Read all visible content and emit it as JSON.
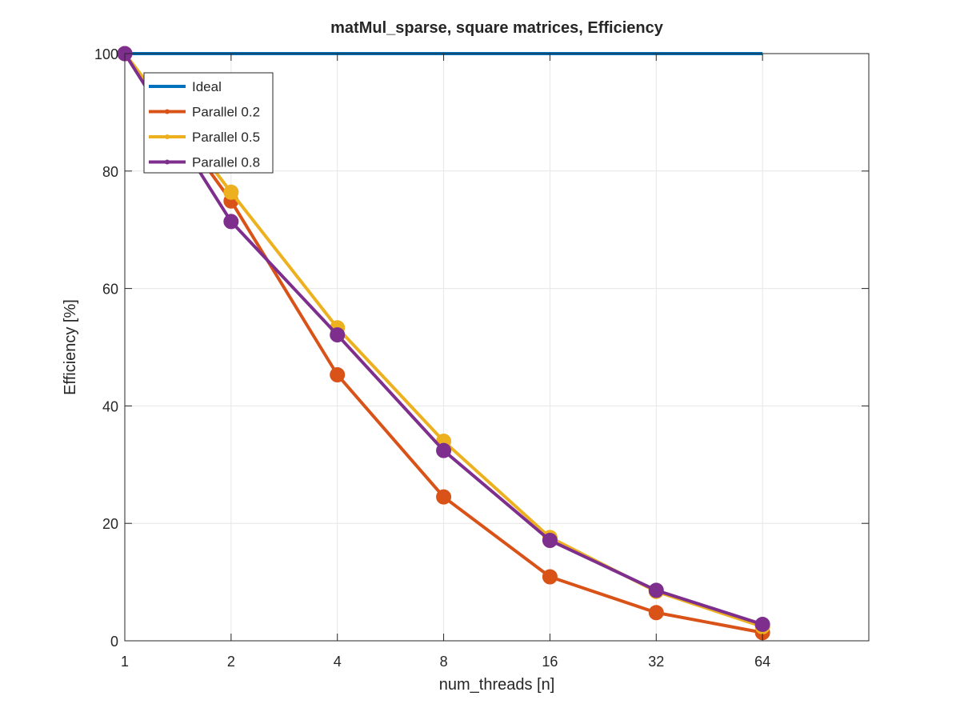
{
  "chart_data": {
    "type": "line",
    "title": "matMul_sparse, square matrices, Efficiency",
    "xlabel": "num_threads [n]",
    "ylabel": "Efficiency [%]",
    "x_scale": "log2",
    "x": [
      1,
      2,
      4,
      8,
      16,
      32,
      64
    ],
    "x_tick_labels": [
      "1",
      "2",
      "4",
      "8",
      "16",
      "32",
      "64"
    ],
    "xlim": [
      1,
      128
    ],
    "ylim": [
      0,
      100
    ],
    "y_ticks": [
      0,
      20,
      40,
      60,
      80,
      100
    ],
    "y_tick_labels": [
      "0",
      "20",
      "40",
      "60",
      "80",
      "100"
    ],
    "grid": true,
    "legend_position": "top-left",
    "series": [
      {
        "name": "Ideal",
        "color": "#0072bd",
        "markers": false,
        "values": [
          100,
          100,
          100,
          100,
          100,
          100,
          100
        ]
      },
      {
        "name": "Parallel 0.2",
        "color": "#d95319",
        "markers": true,
        "values": [
          100,
          74.9,
          45.3,
          24.5,
          10.9,
          4.8,
          1.4
        ]
      },
      {
        "name": "Parallel 0.5",
        "color": "#edb120",
        "markers": true,
        "values": [
          100,
          76.4,
          53.3,
          34.0,
          17.6,
          8.4,
          2.4
        ]
      },
      {
        "name": "Parallel 0.8",
        "color": "#7e2f8e",
        "markers": true,
        "values": [
          100,
          71.4,
          52.1,
          32.4,
          17.1,
          8.6,
          2.8
        ]
      }
    ]
  }
}
